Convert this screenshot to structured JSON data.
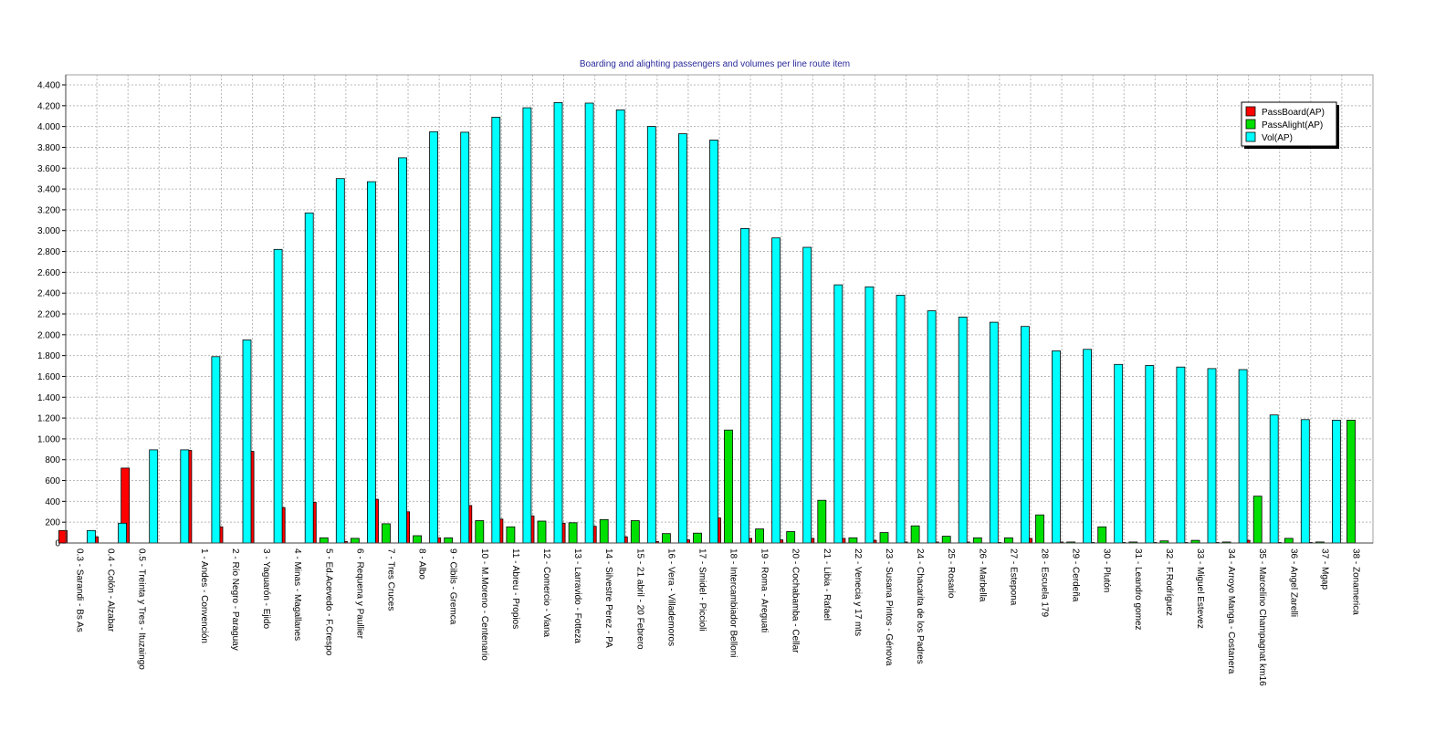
{
  "chart_data": {
    "type": "bar",
    "title": "Boarding and alighting passengers and volumes per line route item",
    "xlabel": "",
    "ylabel": "",
    "ylim": [
      0,
      4400
    ],
    "ytick_values": [
      0,
      200,
      400,
      600,
      800,
      1000,
      1200,
      1400,
      1600,
      1800,
      2000,
      2200,
      2400,
      2600,
      2800,
      3000,
      3200,
      3400,
      3600,
      3800,
      4000,
      4200,
      4400
    ],
    "ytick_labels": [
      "0",
      "200",
      "400",
      "600",
      "800",
      "1.000",
      "1.200",
      "1.400",
      "1.600",
      "1.800",
      "2.000",
      "2.200",
      "2.400",
      "2.600",
      "2.800",
      "3.000",
      "3.200",
      "3.400",
      "3.600",
      "3.800",
      "4.000",
      "4.200",
      "4.400"
    ],
    "grid": true,
    "legend_position": "top-right",
    "categories": [
      "0.3 - Sarandi - Bs As",
      "0.4 - Colón - Alzabar",
      "0.5 - Treinta y Tres - Ituzaingo",
      "",
      "1 - Andes - Convención",
      "2 - Río Negro - Paraguay",
      "3 - Yaguarón - Ejido",
      "4 - Minas - Magallanes",
      "5 - Ed.Acevedo - F.Crespo",
      "6 - Requena y Paullier",
      "7 - Tres Cruces",
      "8 - Albo",
      "9 - Cibils - Gremca",
      "10 - M.Moreno - Centenario",
      "11 - Abreu - Propios",
      "12 - Comercio - Viana",
      "13 - Larravido - Fotteza",
      "14 - Silvestre Perez - PA",
      "15 - 21 abril - 20 Febrero",
      "16 - Vera - Villademoros",
      "17 - Smidel - Piccioli",
      "18 - Intercambiador Belloni",
      "19 - Roma - Areguati",
      "20 - Cochabamba - Cellar",
      "21 - Libia - Rafael",
      "22 - Venecia y 17 mts",
      "23 - Susana Pintos - Génova",
      "24 - Chacarita de los Padres",
      "25 - Rosario",
      "26 - Marbella",
      "27 - Estepona",
      "28 - Escuela 179",
      "29 - Cerdeña",
      "30 - Plutón",
      "31 - Leandro gomez",
      "32 - F.Rodríguez",
      "33 - Miguel Estevez",
      "34 - Arroyo Manga - Costanera",
      "35 - Marcelino Champagnat km16",
      "36 - Angel Zarelli",
      "37 - Mgap",
      "38 - Zonamerica"
    ],
    "series": [
      {
        "name": "PassBoard(AP)",
        "color": "#ff0000",
        "values": [
          120,
          60,
          720,
          0,
          890,
          155,
          880,
          340,
          390,
          15,
          420,
          300,
          50,
          360,
          230,
          260,
          190,
          160,
          60,
          15,
          30,
          240,
          45,
          30,
          45,
          45,
          25,
          10,
          10,
          10,
          5,
          45,
          10,
          5,
          5,
          5,
          5,
          5,
          25,
          5,
          5,
          0
        ]
      },
      {
        "name": "PassAlight(AP)",
        "color": "#00e000",
        "values": [
          0,
          0,
          0,
          0,
          0,
          0,
          0,
          0,
          50,
          45,
          185,
          70,
          50,
          215,
          155,
          210,
          195,
          225,
          215,
          90,
          95,
          1085,
          135,
          110,
          410,
          50,
          100,
          165,
          65,
          50,
          50,
          270,
          10,
          155,
          10,
          20,
          25,
          10,
          450,
          45,
          10,
          1180
        ]
      },
      {
        "name": "Vol(AP)",
        "color": "#00ffff",
        "values": [
          120,
          190,
          895,
          895,
          1790,
          1950,
          2820,
          3170,
          3500,
          3470,
          3700,
          3950,
          3945,
          4090,
          4180,
          4230,
          4225,
          4160,
          4000,
          3930,
          3870,
          3020,
          2930,
          2840,
          2480,
          2460,
          2380,
          2230,
          2170,
          2120,
          2080,
          1845,
          1860,
          1715,
          1705,
          1690,
          1675,
          1665,
          1230,
          1185,
          1180,
          0
        ]
      }
    ]
  }
}
